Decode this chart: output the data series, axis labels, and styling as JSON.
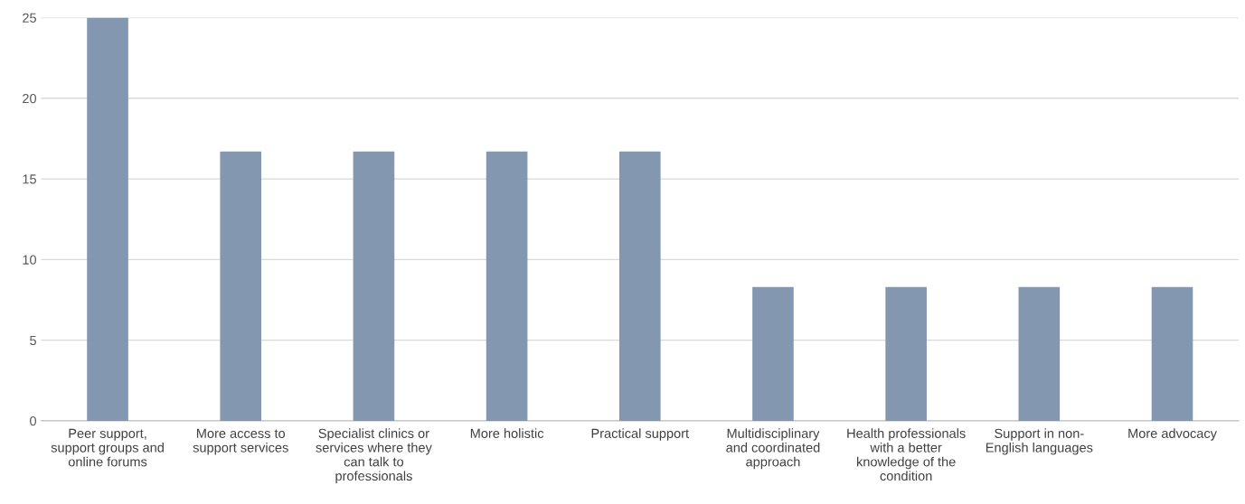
{
  "chart_data": {
    "type": "bar",
    "categories": [
      "Peer support,\nsupport groups and\nonline forums",
      "More access to\nsupport services",
      "Specialist clinics or\nservices where they\ncan talk to\nprofessionals",
      "More holistic",
      "Practical support",
      "Multidisciplinary\nand coordinated\napproach",
      "Health professionals\nwith a better\nknowledge of the\ncondition",
      "Support in non-\nEnglish languages",
      "More advocacy"
    ],
    "values": [
      25,
      16.7,
      16.7,
      16.7,
      16.7,
      8.3,
      8.3,
      8.3,
      8.3
    ],
    "color": "#8497b0",
    "ylim": [
      0,
      25
    ],
    "yticks": [
      0,
      5,
      10,
      15,
      20,
      25
    ],
    "grid": "y"
  }
}
